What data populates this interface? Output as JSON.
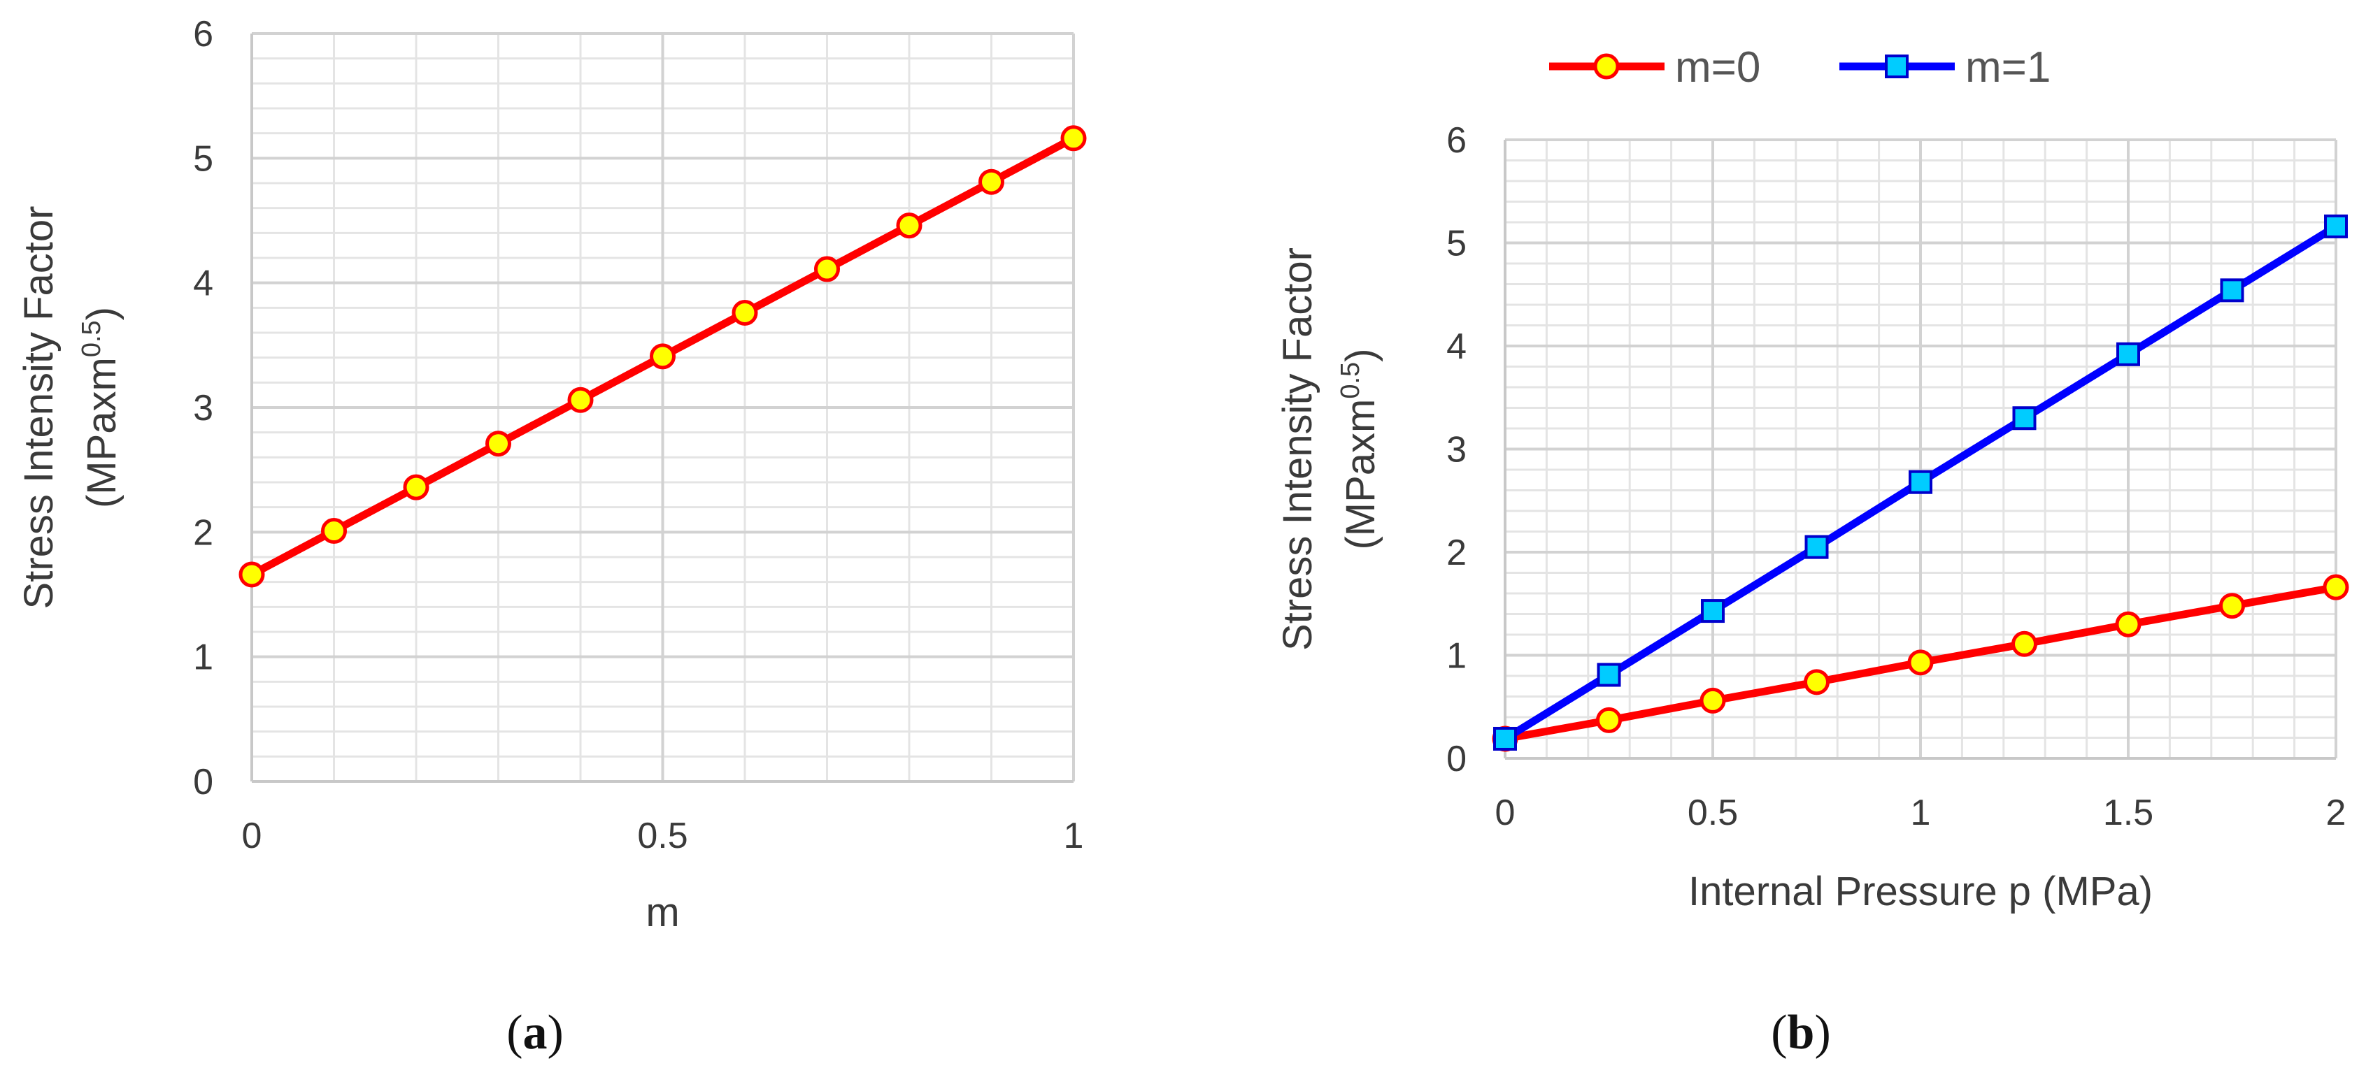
{
  "chart_data": [
    {
      "id": "a",
      "type": "line",
      "caption_letter": "a",
      "xlabel": "m",
      "ylabel_line1": "Stress Intensity Factor",
      "ylabel_line2_prefix": "(MPaxm",
      "ylabel_line2_sup": "0.5",
      "ylabel_line2_suffix": ")",
      "xlim": [
        0,
        1
      ],
      "ylim": [
        0,
        6
      ],
      "x_ticks": [
        "0",
        "0.5",
        "1"
      ],
      "x_tick_values": [
        0,
        0.5,
        1
      ],
      "y_ticks": [
        "0",
        "1",
        "2",
        "3",
        "4",
        "5",
        "6"
      ],
      "y_tick_values": [
        0,
        1,
        2,
        3,
        4,
        5,
        6
      ],
      "grid": true,
      "series": [
        {
          "color": "#ff0000",
          "marker": "circle",
          "marker_fill": "#ffff00",
          "x": [
            0,
            0.1,
            0.2,
            0.3,
            0.4,
            0.5,
            0.6,
            0.7,
            0.8,
            0.9,
            1.0
          ],
          "values": [
            1.66,
            2.01,
            2.36,
            2.71,
            3.06,
            3.41,
            3.76,
            4.11,
            4.46,
            4.81,
            5.16
          ]
        }
      ]
    },
    {
      "id": "b",
      "type": "line",
      "caption_letter": "b",
      "xlabel": "Internal Pressure p (MPa)",
      "ylabel_line1": "Stress Intensity Factor",
      "ylabel_line2_prefix": "(MPaxm",
      "ylabel_line2_sup": "0.5",
      "ylabel_line2_suffix": ")",
      "xlim": [
        0,
        2
      ],
      "ylim": [
        0,
        6
      ],
      "x_ticks": [
        "0",
        "0.5",
        "1",
        "1.5",
        "2"
      ],
      "x_tick_values": [
        0,
        0.5,
        1,
        1.5,
        2
      ],
      "y_ticks": [
        "0",
        "1",
        "2",
        "3",
        "4",
        "5",
        "6"
      ],
      "y_tick_values": [
        0,
        1,
        2,
        3,
        4,
        5,
        6
      ],
      "grid": true,
      "legend": "top",
      "series": [
        {
          "name": "m=0",
          "color": "#ff0000",
          "marker": "circle",
          "marker_fill": "#ffff00",
          "x": [
            0,
            0.25,
            0.5,
            0.75,
            1.0,
            1.25,
            1.5,
            1.75,
            2.0
          ],
          "values": [
            0.19,
            0.37,
            0.56,
            0.74,
            0.93,
            1.11,
            1.3,
            1.48,
            1.66
          ]
        },
        {
          "name": "m=1",
          "color": "#0000ff",
          "marker": "square",
          "marker_fill": "#00ccff",
          "x": [
            0,
            0.25,
            0.5,
            0.75,
            1.0,
            1.25,
            1.5,
            1.75,
            2.0
          ],
          "values": [
            0.19,
            0.81,
            1.43,
            2.05,
            2.68,
            3.3,
            3.92,
            4.54,
            5.16
          ]
        }
      ]
    }
  ]
}
